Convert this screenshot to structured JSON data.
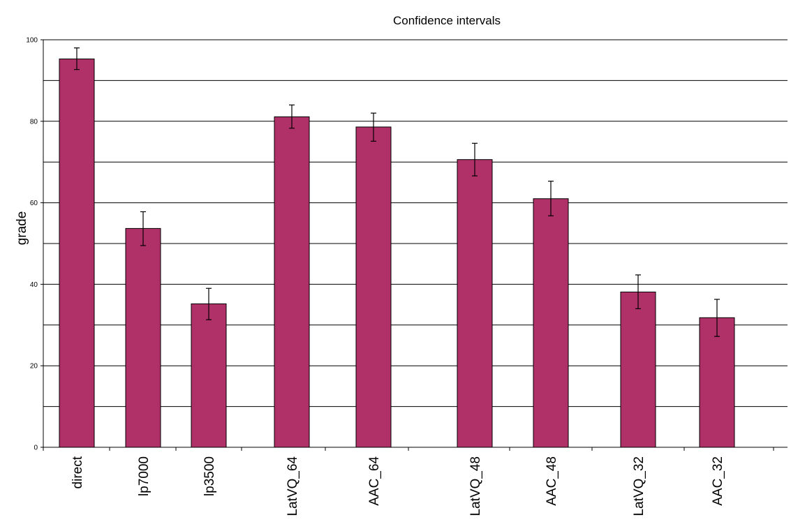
{
  "chart_data": {
    "type": "bar",
    "title": "Confidence intervals",
    "xlabel": "",
    "ylabel": "grade",
    "ylim": [
      0,
      100
    ],
    "yticks": [
      0,
      20,
      40,
      60,
      80,
      100
    ],
    "grid": true,
    "legend": "none",
    "bar_color": "#b03068",
    "categories": [
      "direct",
      "lp7000",
      "lp3500",
      "LatVQ_64",
      "AAC_64",
      "LatVQ_48",
      "AAC_48",
      "LatVQ_32",
      "AAC_32"
    ],
    "values": [
      95.3,
      53.7,
      35.2,
      81.1,
      78.6,
      70.6,
      61.0,
      38.1,
      31.8
    ],
    "error_low": [
      92.7,
      49.5,
      31.3,
      78.3,
      75.1,
      66.6,
      56.8,
      34.0,
      27.2
    ],
    "error_high": [
      98.0,
      57.8,
      39.0,
      84.0,
      82.0,
      74.6,
      65.3,
      42.3,
      36.3
    ]
  }
}
